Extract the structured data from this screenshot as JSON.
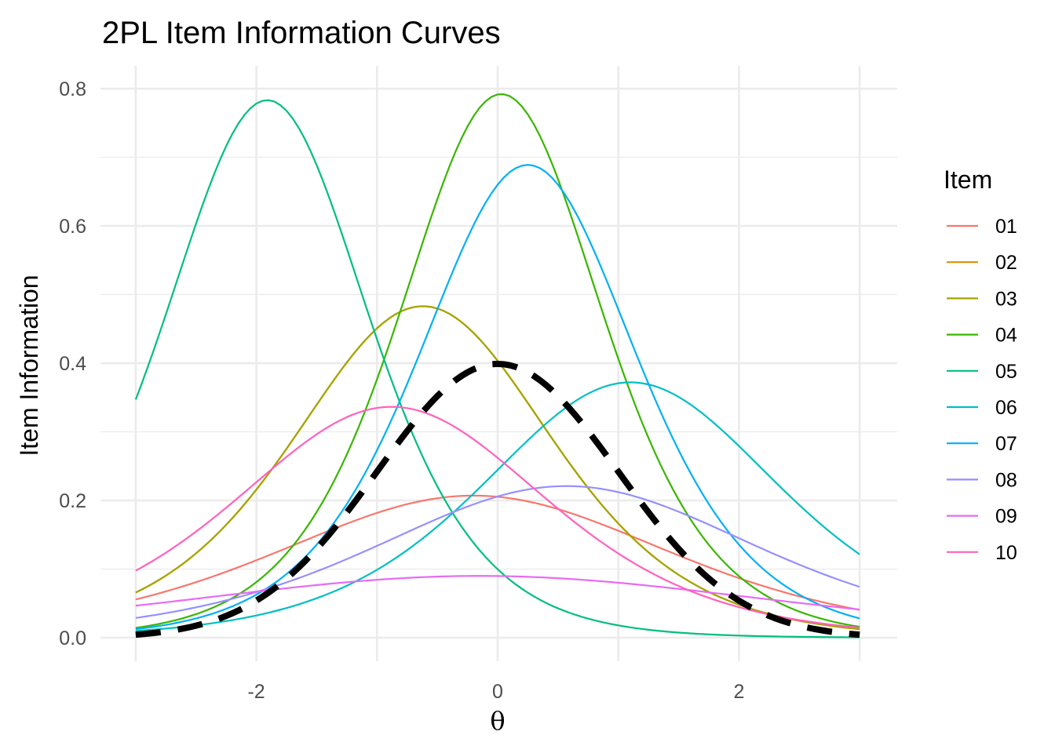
{
  "chart_data": {
    "type": "line",
    "title": "2PL Item Information Curves",
    "xlabel": "θ",
    "ylabel": "Item Information",
    "xlim": [
      -3,
      3
    ],
    "ylim": [
      0,
      0.8
    ],
    "x_ticks": [
      -2,
      0,
      2
    ],
    "x_tick_labels": [
      "-2",
      "0",
      "2"
    ],
    "y_ticks": [
      0.0,
      0.2,
      0.4,
      0.6,
      0.8
    ],
    "y_tick_labels": [
      "0.0",
      "0.2",
      "0.4",
      "0.6",
      "0.8"
    ],
    "grid": true,
    "legend_title": "Item",
    "legend_position": "right",
    "series": [
      {
        "name": "01",
        "color": "#F8766D",
        "a": 0.91,
        "b": -0.2
      },
      {
        "name": "02",
        "color": "#D89000",
        "a": 1.39,
        "b": -0.62
      },
      {
        "name": "03",
        "color": "#A3A500",
        "a": 1.39,
        "b": -0.62
      },
      {
        "name": "04",
        "color": "#39B600",
        "a": 1.78,
        "b": 0.03
      },
      {
        "name": "05",
        "color": "#00BF7D",
        "a": 1.77,
        "b": -1.91
      },
      {
        "name": "06",
        "color": "#00BFC4",
        "a": 1.22,
        "b": 1.1
      },
      {
        "name": "07",
        "color": "#00B0F6",
        "a": 1.66,
        "b": 0.25
      },
      {
        "name": "08",
        "color": "#9590FF",
        "a": 0.94,
        "b": 0.57
      },
      {
        "name": "09",
        "color": "#E76BF3",
        "a": 0.6,
        "b": -0.15
      },
      {
        "name": "10",
        "color": "#FF62BC",
        "a": 1.16,
        "b": -0.88
      }
    ],
    "reference_curve": {
      "style": "dashed",
      "color": "#000000",
      "type": "normal-density",
      "mean": 0,
      "sd": 1
    }
  }
}
